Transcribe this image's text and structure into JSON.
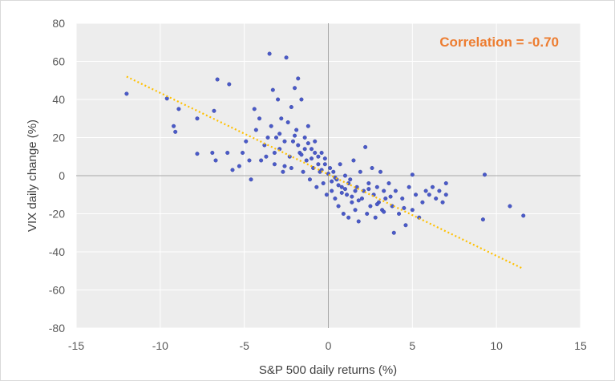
{
  "chart_data": {
    "type": "scatter",
    "title": "",
    "xlabel": "S&P 500 daily returns (%)",
    "ylabel": "VIX daily change (%)",
    "xlim": [
      -15,
      15
    ],
    "ylim": [
      -80,
      80
    ],
    "xticks": [
      -15,
      -10,
      -5,
      0,
      5,
      10,
      15
    ],
    "yticks": [
      80,
      60,
      40,
      20,
      0,
      -20,
      -40,
      -60,
      -80
    ],
    "xtick_labels": [
      "-15",
      "-10",
      "-5",
      "0",
      "5",
      "10",
      "15"
    ],
    "ytick_labels": [
      "80",
      "60",
      "40",
      "20",
      "0",
      "-20",
      "-40",
      "-60",
      "-80"
    ],
    "grid": true,
    "legend": "none",
    "marker_color": "#4a5ac8",
    "trendline_color": "#ffc000",
    "annotation": "Correlation = -0.70",
    "annotation_color": "#ed7d31",
    "trendline": {
      "x": [
        -12.0,
        11.5
      ],
      "y": [
        52.0,
        -48.5
      ]
    },
    "series": [
      {
        "points": [
          [
            -12.0,
            43.0
          ],
          [
            -9.6,
            40.5
          ],
          [
            -9.2,
            26.0
          ],
          [
            -9.1,
            23.0
          ],
          [
            -8.9,
            35.0
          ],
          [
            -7.8,
            30.0
          ],
          [
            -7.8,
            11.5
          ],
          [
            -6.9,
            12.0
          ],
          [
            -6.8,
            34.0
          ],
          [
            -6.7,
            8.0
          ],
          [
            -6.6,
            50.5
          ],
          [
            -6.0,
            12.0
          ],
          [
            -5.9,
            48.0
          ],
          [
            -5.7,
            3.0
          ],
          [
            -5.3,
            5.0
          ],
          [
            -5.1,
            12.0
          ],
          [
            -4.9,
            18.0
          ],
          [
            -4.7,
            8.0
          ],
          [
            -4.6,
            -2.0
          ],
          [
            -4.4,
            35.0
          ],
          [
            -4.3,
            24.0
          ],
          [
            -4.1,
            30.0
          ],
          [
            -4.0,
            8.0
          ],
          [
            -3.8,
            16.0
          ],
          [
            -3.7,
            10.0
          ],
          [
            -3.5,
            64.0
          ],
          [
            -3.4,
            26.0
          ],
          [
            -3.3,
            45.0
          ],
          [
            -3.2,
            12.0
          ],
          [
            -3.1,
            20.0
          ],
          [
            -3.0,
            40.0
          ],
          [
            -2.9,
            14.0
          ],
          [
            -2.8,
            30.0
          ],
          [
            -2.7,
            2.0
          ],
          [
            -2.6,
            5.0
          ],
          [
            -2.5,
            62.0
          ],
          [
            -2.4,
            28.0
          ],
          [
            -2.3,
            10.0
          ],
          [
            -2.2,
            36.0
          ],
          [
            -2.1,
            18.0
          ],
          [
            -2.0,
            46.0
          ],
          [
            -1.9,
            24.0
          ],
          [
            -1.8,
            51.0
          ],
          [
            -1.7,
            12.0
          ],
          [
            -1.6,
            40.0
          ],
          [
            -1.5,
            2.0
          ],
          [
            -1.4,
            20.0
          ],
          [
            -1.3,
            8.0
          ],
          [
            -1.2,
            26.0
          ],
          [
            -1.1,
            -2.0
          ],
          [
            -1.0,
            14.0
          ],
          [
            -0.9,
            4.0
          ],
          [
            -0.8,
            18.0
          ],
          [
            -0.7,
            -6.0
          ],
          [
            -0.6,
            10.0
          ],
          [
            -0.5,
            2.0
          ],
          [
            -0.4,
            12.0
          ],
          [
            -0.3,
            -4.0
          ],
          [
            -0.2,
            6.0
          ],
          [
            -0.1,
            -10.0
          ],
          [
            0.1,
            4.0
          ],
          [
            0.2,
            -8.0
          ],
          [
            0.3,
            2.0
          ],
          [
            0.4,
            -12.0
          ],
          [
            0.5,
            -2.0
          ],
          [
            0.6,
            -16.0
          ],
          [
            0.7,
            6.0
          ],
          [
            0.8,
            -6.0
          ],
          [
            0.9,
            -20.0
          ],
          [
            1.0,
            0.0
          ],
          [
            1.1,
            -10.0
          ],
          [
            1.2,
            -22.0
          ],
          [
            1.3,
            -2.0
          ],
          [
            1.4,
            -14.0
          ],
          [
            1.5,
            8.0
          ],
          [
            1.6,
            -18.0
          ],
          [
            1.7,
            -6.0
          ],
          [
            1.8,
            -24.0
          ],
          [
            1.9,
            2.0
          ],
          [
            2.0,
            -12.0
          ],
          [
            2.1,
            -8.0
          ],
          [
            2.2,
            15.0
          ],
          [
            2.3,
            -20.0
          ],
          [
            2.4,
            -4.0
          ],
          [
            2.5,
            -16.0
          ],
          [
            2.6,
            4.0
          ],
          [
            2.7,
            -10.0
          ],
          [
            2.8,
            -22.0
          ],
          [
            2.9,
            -6.0
          ],
          [
            3.0,
            -14.0
          ],
          [
            3.1,
            2.0
          ],
          [
            3.2,
            -18.0
          ],
          [
            3.3,
            -8.0
          ],
          [
            3.4,
            -12.0
          ],
          [
            3.6,
            -4.0
          ],
          [
            3.8,
            -16.0
          ],
          [
            3.9,
            -30.0
          ],
          [
            4.0,
            -8.0
          ],
          [
            4.2,
            -20.0
          ],
          [
            4.4,
            -12.0
          ],
          [
            4.6,
            -26.0
          ],
          [
            4.8,
            -6.0
          ],
          [
            5.0,
            -18.0
          ],
          [
            5.0,
            0.5
          ],
          [
            5.2,
            -10.0
          ],
          [
            5.4,
            -22.0
          ],
          [
            5.6,
            -14.0
          ],
          [
            5.8,
            -8.0
          ],
          [
            6.0,
            -10.0
          ],
          [
            6.2,
            -6.0
          ],
          [
            6.4,
            -12.0
          ],
          [
            6.6,
            -8.0
          ],
          [
            6.8,
            -14.0
          ],
          [
            7.0,
            -4.0
          ],
          [
            7.0,
            -10.0
          ],
          [
            9.2,
            -23.0
          ],
          [
            9.3,
            0.5
          ],
          [
            10.8,
            -16.0
          ],
          [
            11.6,
            -21.0
          ],
          [
            -2.0,
            21.0
          ],
          [
            -1.8,
            16.0
          ],
          [
            -1.6,
            11.0
          ],
          [
            -1.4,
            14.0
          ],
          [
            -1.2,
            17.0
          ],
          [
            -1.0,
            9.0
          ],
          [
            -0.8,
            12.0
          ],
          [
            -0.6,
            6.0
          ],
          [
            -0.4,
            3.0
          ],
          [
            -0.2,
            9.0
          ],
          [
            0.0,
            1.0
          ],
          [
            0.2,
            -3.0
          ],
          [
            0.4,
            -1.0
          ],
          [
            0.6,
            -5.0
          ],
          [
            0.8,
            -9.0
          ],
          [
            1.0,
            -7.0
          ],
          [
            1.2,
            -4.0
          ],
          [
            1.4,
            -11.0
          ],
          [
            1.6,
            -8.0
          ],
          [
            1.8,
            -13.0
          ],
          [
            -2.6,
            18.0
          ],
          [
            -3.2,
            6.0
          ],
          [
            -3.6,
            20.0
          ],
          [
            -2.9,
            22.0
          ],
          [
            -2.2,
            4.0
          ],
          [
            2.4,
            -7.0
          ],
          [
            2.9,
            -15.0
          ],
          [
            3.3,
            -19.0
          ],
          [
            3.7,
            -11.0
          ],
          [
            4.5,
            -17.0
          ]
        ]
      }
    ]
  }
}
